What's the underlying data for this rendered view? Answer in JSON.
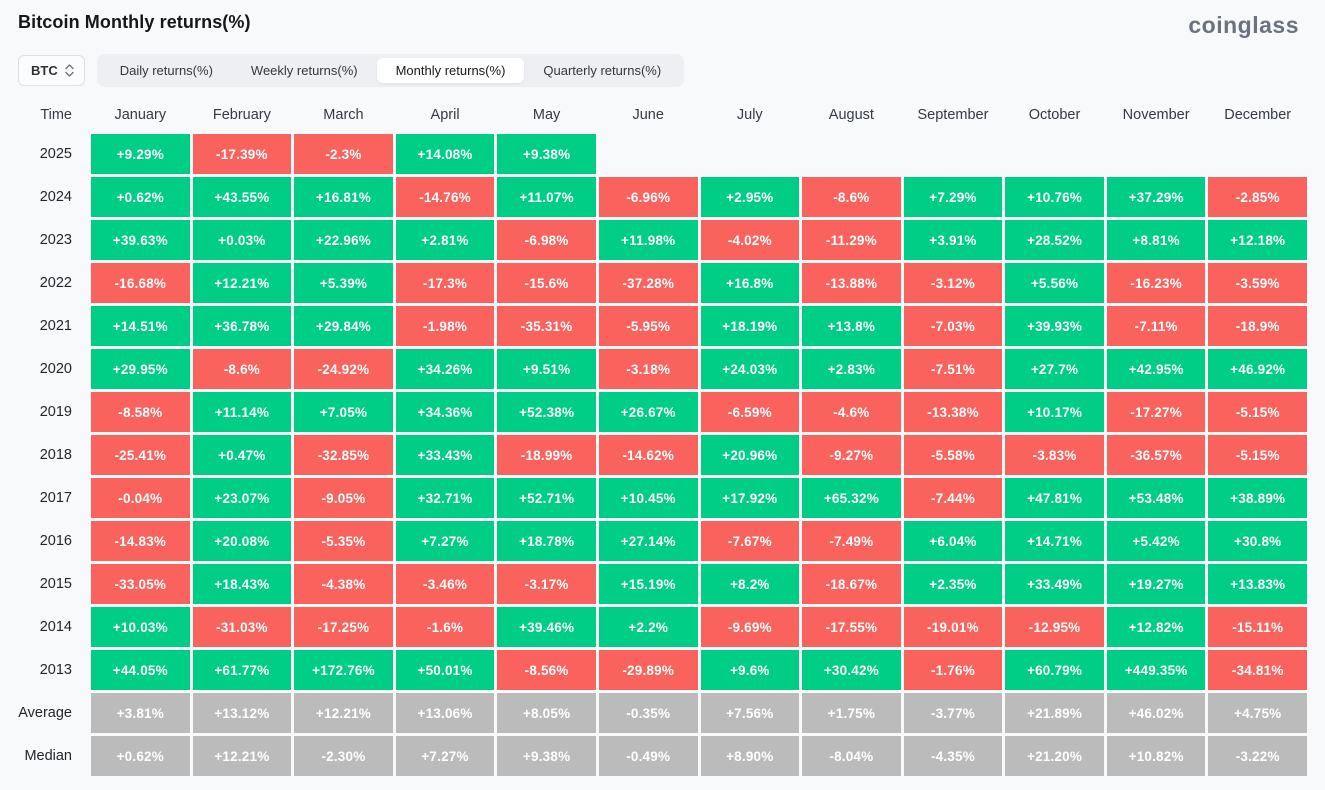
{
  "header": {
    "title": "Bitcoin Monthly returns(%)",
    "logo": "coinglass"
  },
  "controls": {
    "coin_selector": {
      "label": "BTC"
    },
    "tabs": [
      {
        "label": "Daily returns(%)",
        "active": false
      },
      {
        "label": "Weekly returns(%)",
        "active": false
      },
      {
        "label": "Monthly returns(%)",
        "active": true
      },
      {
        "label": "Quarterly returns(%)",
        "active": false
      }
    ]
  },
  "colors": {
    "positive": "#00ce87",
    "negative": "#fa625e",
    "summary": "#bbbbbb"
  },
  "table": {
    "time_header": "Time",
    "months": [
      "January",
      "February",
      "March",
      "April",
      "May",
      "June",
      "July",
      "August",
      "September",
      "October",
      "November",
      "December"
    ],
    "rows": [
      {
        "label": "2025",
        "type": "data",
        "values": [
          "+9.29%",
          "-17.39%",
          "-2.3%",
          "+14.08%",
          "+9.38%",
          null,
          null,
          null,
          null,
          null,
          null,
          null
        ]
      },
      {
        "label": "2024",
        "type": "data",
        "values": [
          "+0.62%",
          "+43.55%",
          "+16.81%",
          "-14.76%",
          "+11.07%",
          "-6.96%",
          "+2.95%",
          "-8.6%",
          "+7.29%",
          "+10.76%",
          "+37.29%",
          "-2.85%"
        ]
      },
      {
        "label": "2023",
        "type": "data",
        "values": [
          "+39.63%",
          "+0.03%",
          "+22.96%",
          "+2.81%",
          "-6.98%",
          "+11.98%",
          "-4.02%",
          "-11.29%",
          "+3.91%",
          "+28.52%",
          "+8.81%",
          "+12.18%"
        ]
      },
      {
        "label": "2022",
        "type": "data",
        "values": [
          "-16.68%",
          "+12.21%",
          "+5.39%",
          "-17.3%",
          "-15.6%",
          "-37.28%",
          "+16.8%",
          "-13.88%",
          "-3.12%",
          "+5.56%",
          "-16.23%",
          "-3.59%"
        ]
      },
      {
        "label": "2021",
        "type": "data",
        "values": [
          "+14.51%",
          "+36.78%",
          "+29.84%",
          "-1.98%",
          "-35.31%",
          "-5.95%",
          "+18.19%",
          "+13.8%",
          "-7.03%",
          "+39.93%",
          "-7.11%",
          "-18.9%"
        ]
      },
      {
        "label": "2020",
        "type": "data",
        "values": [
          "+29.95%",
          "-8.6%",
          "-24.92%",
          "+34.26%",
          "+9.51%",
          "-3.18%",
          "+24.03%",
          "+2.83%",
          "-7.51%",
          "+27.7%",
          "+42.95%",
          "+46.92%"
        ]
      },
      {
        "label": "2019",
        "type": "data",
        "values": [
          "-8.58%",
          "+11.14%",
          "+7.05%",
          "+34.36%",
          "+52.38%",
          "+26.67%",
          "-6.59%",
          "-4.6%",
          "-13.38%",
          "+10.17%",
          "-17.27%",
          "-5.15%"
        ]
      },
      {
        "label": "2018",
        "type": "data",
        "values": [
          "-25.41%",
          "+0.47%",
          "-32.85%",
          "+33.43%",
          "-18.99%",
          "-14.62%",
          "+20.96%",
          "-9.27%",
          "-5.58%",
          "-3.83%",
          "-36.57%",
          "-5.15%"
        ]
      },
      {
        "label": "2017",
        "type": "data",
        "values": [
          "-0.04%",
          "+23.07%",
          "-9.05%",
          "+32.71%",
          "+52.71%",
          "+10.45%",
          "+17.92%",
          "+65.32%",
          "-7.44%",
          "+47.81%",
          "+53.48%",
          "+38.89%"
        ]
      },
      {
        "label": "2016",
        "type": "data",
        "values": [
          "-14.83%",
          "+20.08%",
          "-5.35%",
          "+7.27%",
          "+18.78%",
          "+27.14%",
          "-7.67%",
          "-7.49%",
          "+6.04%",
          "+14.71%",
          "+5.42%",
          "+30.8%"
        ]
      },
      {
        "label": "2015",
        "type": "data",
        "values": [
          "-33.05%",
          "+18.43%",
          "-4.38%",
          "-3.46%",
          "-3.17%",
          "+15.19%",
          "+8.2%",
          "-18.67%",
          "+2.35%",
          "+33.49%",
          "+19.27%",
          "+13.83%"
        ]
      },
      {
        "label": "2014",
        "type": "data",
        "values": [
          "+10.03%",
          "-31.03%",
          "-17.25%",
          "-1.6%",
          "+39.46%",
          "+2.2%",
          "-9.69%",
          "-17.55%",
          "-19.01%",
          "-12.95%",
          "+12.82%",
          "-15.11%"
        ]
      },
      {
        "label": "2013",
        "type": "data",
        "values": [
          "+44.05%",
          "+61.77%",
          "+172.76%",
          "+50.01%",
          "-8.56%",
          "-29.89%",
          "+9.6%",
          "+30.42%",
          "-1.76%",
          "+60.79%",
          "+449.35%",
          "-34.81%"
        ]
      },
      {
        "label": "Average",
        "type": "summary",
        "values": [
          "+3.81%",
          "+13.12%",
          "+12.21%",
          "+13.06%",
          "+8.05%",
          "-0.35%",
          "+7.56%",
          "+1.75%",
          "-3.77%",
          "+21.89%",
          "+46.02%",
          "+4.75%"
        ]
      },
      {
        "label": "Median",
        "type": "summary",
        "values": [
          "+0.62%",
          "+12.21%",
          "-2.30%",
          "+7.27%",
          "+9.38%",
          "-0.49%",
          "+8.90%",
          "-8.04%",
          "-4.35%",
          "+21.20%",
          "+10.82%",
          "-3.22%"
        ]
      }
    ]
  }
}
